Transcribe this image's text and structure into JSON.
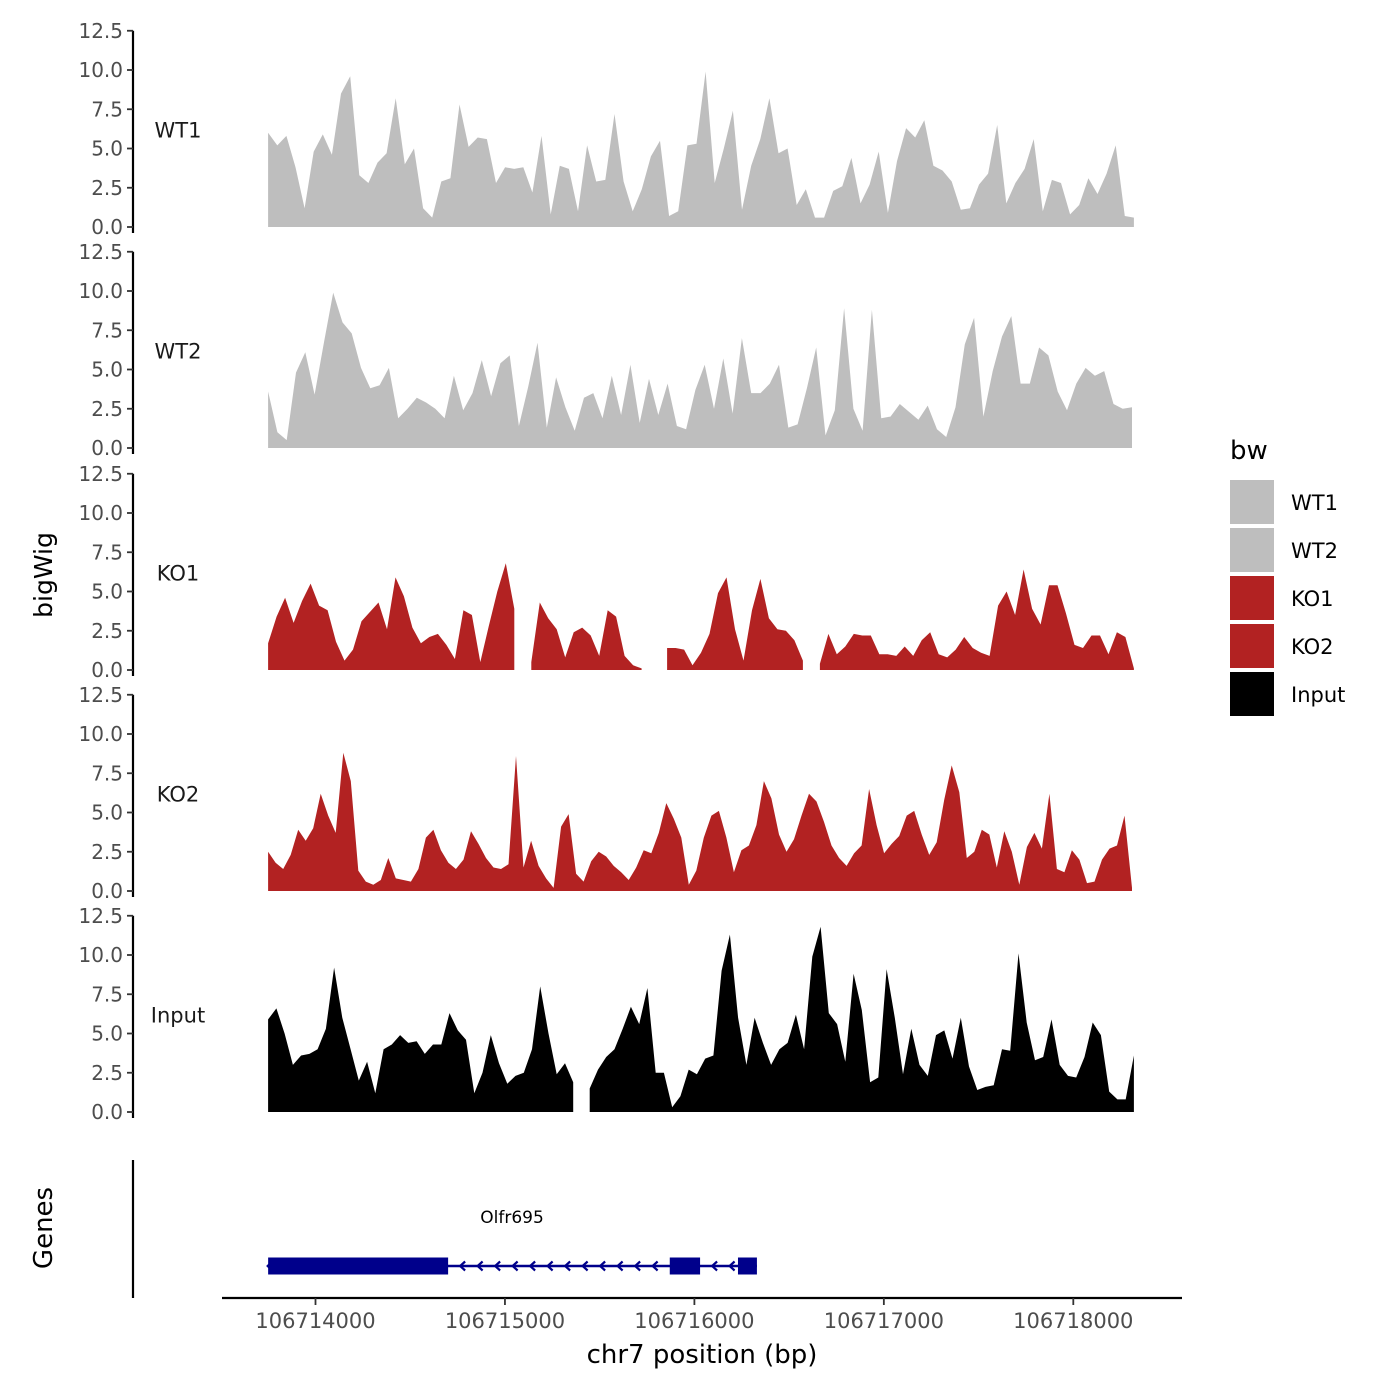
{
  "chart_data": {
    "type": "area",
    "ylabel": "bigWig",
    "genes_label": "Genes",
    "xlabel": "chr7 position (bp)",
    "x_range": [
      106713750,
      106718320
    ],
    "ylim": [
      0,
      12.5
    ],
    "y_ticks": [
      "0.0",
      "2.5",
      "5.0",
      "7.5",
      "10.0",
      "12.5"
    ],
    "x_ticks": [
      {
        "value": 106714000,
        "label": "106714000"
      },
      {
        "value": 106715000,
        "label": "106715000"
      },
      {
        "value": 106716000,
        "label": "106716000"
      },
      {
        "value": 106717000,
        "label": "106717000"
      },
      {
        "value": 106718000,
        "label": "106718000"
      }
    ],
    "legend": {
      "title": "bw",
      "position": "right",
      "entries": [
        {
          "label": "WT1",
          "color": "#bebebe"
        },
        {
          "label": "WT2",
          "color": "#bebebe"
        },
        {
          "label": "KO1",
          "color": "#b22222"
        },
        {
          "label": "KO2",
          "color": "#b22222"
        },
        {
          "label": "Input",
          "color": "#000000"
        }
      ]
    },
    "series": [
      {
        "name": "WT1",
        "color": "#bebebe",
        "x_start": 106713750,
        "x_end": 106718320,
        "values": [
          6.0,
          5.2,
          5.8,
          3.8,
          1.2,
          4.8,
          5.9,
          4.6,
          8.5,
          9.6,
          3.3,
          2.8,
          4.1,
          4.7,
          8.2,
          4.0,
          5.0,
          1.2,
          0.6,
          2.9,
          3.1,
          7.8,
          5.1,
          5.7,
          5.6,
          2.8,
          3.8,
          3.7,
          3.8,
          2.2,
          5.8,
          0.8,
          3.9,
          3.7,
          1.0,
          5.2,
          2.9,
          3.0,
          7.2,
          2.9,
          1.0,
          2.4,
          4.5,
          5.5,
          0.7,
          1.0,
          5.2,
          5.3,
          9.9,
          2.8,
          5.0,
          7.4,
          1.1,
          3.9,
          5.6,
          8.2,
          4.7,
          5.0,
          1.4,
          2.4,
          0.6,
          0.6,
          2.3,
          2.6,
          4.4,
          1.5,
          2.7,
          4.8,
          0.9,
          4.2,
          6.3,
          5.7,
          6.8,
          3.9,
          3.6,
          2.9,
          1.1,
          1.2,
          2.7,
          3.4,
          6.5,
          1.5,
          2.8,
          3.7,
          5.6,
          1.0,
          3.0,
          2.8,
          0.8,
          1.4,
          3.1,
          2.1,
          3.4,
          5.2,
          0.7,
          0.6
        ]
      },
      {
        "name": "WT2",
        "color": "#bebebe",
        "x_start": 106713750,
        "x_end": 106718310,
        "values": [
          3.6,
          1.0,
          0.5,
          4.8,
          6.1,
          3.4,
          6.7,
          9.9,
          8.0,
          7.3,
          5.1,
          3.8,
          4.0,
          5.1,
          1.9,
          2.5,
          3.2,
          2.9,
          2.5,
          1.9,
          4.6,
          2.4,
          3.5,
          5.6,
          3.3,
          5.4,
          5.9,
          1.4,
          3.9,
          6.7,
          1.3,
          4.5,
          2.6,
          1.1,
          3.2,
          3.5,
          1.9,
          4.6,
          2.1,
          5.3,
          1.6,
          4.4,
          2.1,
          4.1,
          1.4,
          1.2,
          3.7,
          5.3,
          2.5,
          5.7,
          2.2,
          7.0,
          3.5,
          3.5,
          4.1,
          5.3,
          1.3,
          1.5,
          3.8,
          6.4,
          0.8,
          2.4,
          8.9,
          2.5,
          1.1,
          8.8,
          1.9,
          2.0,
          2.8,
          2.3,
          1.8,
          2.7,
          1.2,
          0.7,
          2.6,
          6.6,
          8.3,
          2.0,
          4.9,
          7.1,
          8.4,
          4.1,
          4.1,
          6.4,
          5.9,
          3.6,
          2.4,
          4.1,
          5.1,
          4.6,
          4.9,
          2.8,
          2.5,
          2.6
        ]
      },
      {
        "name": "KO1",
        "color": "#b22222",
        "x_start": 106713750,
        "x_end": 106718320,
        "values": [
          1.7,
          3.4,
          4.6,
          3.0,
          4.4,
          5.5,
          4.1,
          3.8,
          1.8,
          0.6,
          1.3,
          3.1,
          3.7,
          4.3,
          2.6,
          5.9,
          4.7,
          2.7,
          1.7,
          2.1,
          2.3,
          1.6,
          0.7,
          3.8,
          3.5,
          0.5,
          2.8,
          5.0,
          6.8,
          3.9,
          -1,
          0.5,
          4.3,
          3.3,
          2.6,
          0.8,
          2.4,
          2.7,
          2.2,
          0.9,
          3.8,
          3.4,
          0.9,
          0.3,
          0.1,
          -1,
          -1,
          1.4,
          1.4,
          1.3,
          0.3,
          1.1,
          2.3,
          4.9,
          5.9,
          2.6,
          0.6,
          3.8,
          5.8,
          3.3,
          2.6,
          2.5,
          1.9,
          0.6,
          -1,
          0.4,
          2.3,
          1.0,
          1.5,
          2.3,
          2.2,
          2.2,
          1.0,
          1.0,
          0.9,
          1.5,
          0.9,
          1.9,
          2.4,
          1.0,
          0.8,
          1.3,
          2.1,
          1.4,
          1.1,
          0.9,
          4.1,
          5.0,
          3.5,
          6.4,
          3.9,
          2.9,
          5.4,
          5.4,
          3.6,
          1.6,
          1.4,
          2.2,
          2.2,
          1.0,
          2.4,
          2.1,
          0.1
        ]
      },
      {
        "name": "KO2",
        "color": "#b22222",
        "x_start": 106713750,
        "x_end": 106718310,
        "values": [
          2.5,
          1.8,
          1.4,
          2.3,
          3.9,
          3.2,
          4.0,
          6.2,
          4.8,
          3.7,
          8.8,
          7.0,
          1.3,
          0.6,
          0.4,
          0.7,
          2.1,
          0.8,
          0.7,
          0.6,
          1.4,
          3.4,
          3.9,
          2.6,
          1.8,
          1.4,
          2.0,
          3.8,
          3.0,
          2.1,
          1.5,
          1.4,
          1.7,
          8.6,
          1.5,
          3.2,
          1.6,
          0.8,
          0.2,
          4.1,
          4.9,
          1.1,
          0.6,
          1.9,
          2.5,
          2.2,
          1.6,
          1.2,
          0.7,
          1.5,
          2.6,
          2.4,
          3.7,
          5.6,
          4.6,
          3.4,
          0.4,
          1.3,
          3.4,
          4.8,
          5.1,
          3.4,
          1.2,
          2.6,
          2.9,
          4.2,
          7.0,
          5.9,
          3.6,
          2.5,
          3.3,
          4.8,
          6.2,
          5.7,
          4.4,
          2.9,
          2.1,
          1.6,
          2.4,
          2.9,
          6.5,
          4.2,
          2.4,
          3.0,
          3.5,
          4.8,
          5.1,
          3.6,
          2.3,
          3.1,
          5.8,
          8.0,
          6.3,
          2.1,
          2.5,
          3.9,
          3.6,
          1.5,
          3.8,
          2.5,
          0.4,
          2.8,
          3.7,
          2.7,
          6.2,
          1.4,
          1.2,
          2.6,
          2.0,
          0.5,
          0.6,
          2.0,
          2.7,
          2.9,
          4.8,
          0.2
        ]
      },
      {
        "name": "Input",
        "color": "#000000",
        "x_start": 106713750,
        "x_end": 106718320,
        "values": [
          5.9,
          6.6,
          5.0,
          3.0,
          3.6,
          3.7,
          4.0,
          5.3,
          9.2,
          6.0,
          4.0,
          2.0,
          3.2,
          1.2,
          4.0,
          4.3,
          4.9,
          4.4,
          4.5,
          3.7,
          4.3,
          4.3,
          6.3,
          5.2,
          4.6,
          1.2,
          2.5,
          4.9,
          3.1,
          1.8,
          2.3,
          2.5,
          4.0,
          8.0,
          5.0,
          2.4,
          3.1,
          1.9,
          -1,
          1.5,
          2.7,
          3.5,
          4.0,
          5.3,
          6.7,
          5.6,
          7.9,
          2.5,
          2.5,
          0.3,
          1.0,
          2.7,
          2.4,
          3.4,
          3.6,
          9.0,
          11.3,
          6.0,
          3.0,
          6.0,
          4.4,
          3.0,
          4.0,
          4.4,
          6.2,
          4.0,
          9.9,
          11.8,
          6.3,
          5.6,
          3.2,
          8.8,
          6.5,
          1.9,
          2.2,
          9.1,
          6.0,
          2.4,
          5.3,
          3.0,
          2.3,
          4.9,
          5.2,
          3.4,
          6.0,
          2.9,
          1.4,
          1.6,
          1.7,
          4.0,
          3.9,
          10.1,
          5.7,
          3.3,
          3.5,
          5.9,
          3.0,
          2.3,
          2.2,
          3.5,
          5.7,
          4.9,
          1.3,
          0.8,
          0.8,
          3.6
        ]
      }
    ],
    "gene": {
      "name": "Olfr695",
      "strand": "-",
      "color": "#00008b",
      "start": 106713750,
      "end": 106716330,
      "exons": [
        [
          106713750,
          106714700
        ],
        [
          106715870,
          106716030
        ],
        [
          106716230,
          106716330
        ]
      ]
    }
  }
}
